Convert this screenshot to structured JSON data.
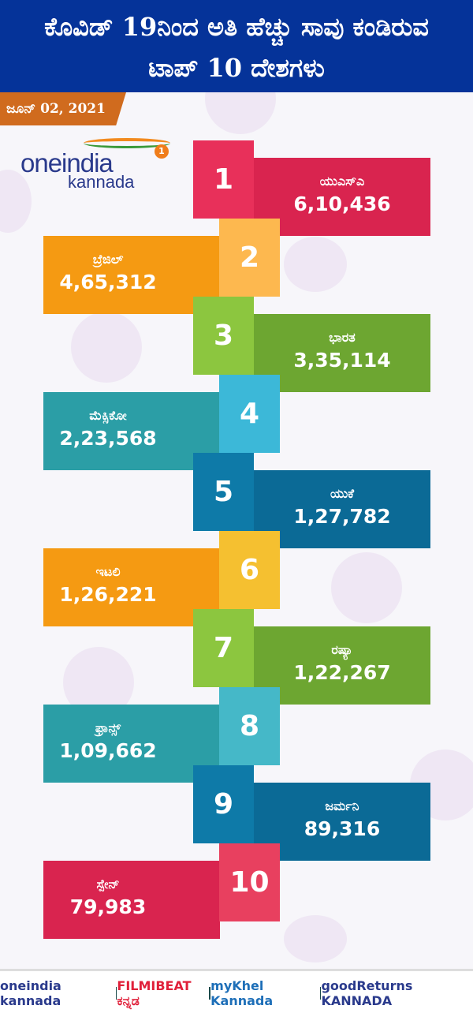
{
  "header": {
    "title_line1": "ಕೊವಿಡ್ 19ನಿಂದ ಅತಿ ಹೆಚ್ಚು ಸಾವು ಕಂಡಿರುವ",
    "title_line2": "ಟಾಪ್ 10 ದೇಶಗಳು",
    "date": "ಜೂನ್ 02, 2021"
  },
  "logo": {
    "brand": "oneindia",
    "sub": "kannada",
    "badge": "1"
  },
  "rows": [
    {
      "rank": "1",
      "country": "ಯುಎಸ್ಎ",
      "deaths": "6,10,436",
      "num_color": "#e8305a",
      "label_color": "#d9244f",
      "side": "right"
    },
    {
      "rank": "2",
      "country": "ಬ್ರೆಜಿಲ್",
      "deaths": "4,65,312",
      "num_color": "#fdb84f",
      "label_color": "#f59a12",
      "side": "left"
    },
    {
      "rank": "3",
      "country": "ಭಾರತ",
      "deaths": "3,35,114",
      "num_color": "#8cc63f",
      "label_color": "#6da631",
      "side": "right"
    },
    {
      "rank": "4",
      "country": "ಮೆಕ್ಸಿಕೋ",
      "deaths": "2,23,568",
      "num_color": "#3cb8d8",
      "label_color": "#2b9ea6",
      "side": "left"
    },
    {
      "rank": "5",
      "country": "ಯುಕೆ",
      "deaths": "1,27,782",
      "num_color": "#0e7aa8",
      "label_color": "#0b6a96",
      "side": "right"
    },
    {
      "rank": "6",
      "country": "ಇಟಲಿ",
      "deaths": "1,26,221",
      "num_color": "#f5c030",
      "label_color": "#f59a12",
      "side": "left"
    },
    {
      "rank": "7",
      "country": "ರಷ್ಯಾ",
      "deaths": "1,22,267",
      "num_color": "#8cc63f",
      "label_color": "#6da631",
      "side": "right"
    },
    {
      "rank": "8",
      "country": "ಫ್ರಾನ್ಸ್",
      "deaths": "1,09,662",
      "num_color": "#45b8c8",
      "label_color": "#2b9ea6",
      "side": "left"
    },
    {
      "rank": "9",
      "country": "ಜರ್ಮನಿ",
      "deaths": "89,316",
      "num_color": "#0e7aa8",
      "label_color": "#0b6a96",
      "side": "right"
    },
    {
      "rank": "10",
      "country": "ಸ್ಪೇನ್",
      "deaths": "79,983",
      "num_color": "#e8405f",
      "label_color": "#d9244f",
      "side": "left"
    }
  ],
  "footer": {
    "brands": [
      "oneindia kannada",
      "FILMIBEAT ಕನ್ನಡ",
      "myKhel Kannada",
      "goodReturns KANNADA"
    ]
  }
}
